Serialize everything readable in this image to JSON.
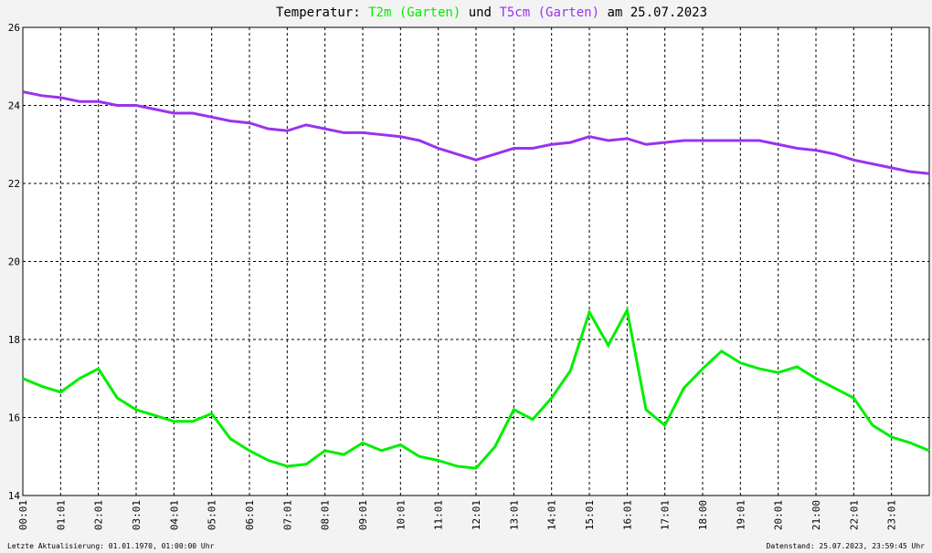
{
  "chart_data": {
    "type": "line",
    "title_parts": [
      "Temperatur:",
      "T2m (Garten)",
      "und",
      "T5cm (Garten)",
      "am 25.07.2023"
    ],
    "footer_left": "Letzte Aktualisierung: 01.01.1970, 01:00:00 Uhr",
    "footer_right": "Datenstand: 25.07.2023, 23:59:45 Uhr",
    "x": [
      0,
      0.5,
      1,
      1.5,
      2,
      2.5,
      3,
      3.5,
      4,
      4.5,
      5,
      5.5,
      6,
      6.5,
      7,
      7.5,
      8,
      8.5,
      9,
      9.5,
      10,
      10.5,
      11,
      11.5,
      12,
      12.5,
      13,
      13.5,
      14,
      14.5,
      15,
      15.5,
      16,
      16.5,
      17,
      17.5,
      18,
      18.5,
      19,
      19.5,
      20,
      20.5,
      21,
      21.5,
      22,
      22.5,
      23,
      23.5,
      24
    ],
    "series": [
      {
        "name": "T2m (Garten)",
        "color": "#00ee00",
        "values": [
          17.0,
          16.8,
          16.65,
          17.0,
          17.25,
          16.5,
          16.2,
          16.05,
          15.9,
          15.9,
          16.1,
          15.45,
          15.15,
          14.9,
          14.75,
          14.8,
          15.15,
          15.05,
          15.35,
          15.15,
          15.3,
          15.0,
          14.9,
          14.75,
          14.7,
          15.25,
          16.2,
          15.95,
          16.5,
          17.2,
          18.7,
          17.85,
          18.75,
          16.2,
          15.8,
          16.75,
          17.25,
          17.7,
          17.4,
          17.25,
          17.15,
          17.3,
          17.0,
          16.75,
          16.5,
          15.8,
          15.5,
          15.35,
          15.15
        ]
      },
      {
        "name": "T5cm (Garten)",
        "color": "#9933ee",
        "values": [
          24.35,
          24.25,
          24.2,
          24.1,
          24.1,
          24.0,
          24.0,
          23.9,
          23.8,
          23.8,
          23.7,
          23.6,
          23.55,
          23.4,
          23.35,
          23.5,
          23.4,
          23.3,
          23.3,
          23.25,
          23.2,
          23.1,
          22.9,
          22.75,
          22.6,
          22.75,
          22.9,
          22.9,
          23.0,
          23.05,
          23.2,
          23.1,
          23.15,
          23.0,
          23.05,
          23.1,
          23.1,
          23.1,
          23.1,
          23.1,
          23.0,
          22.9,
          22.85,
          22.75,
          22.6,
          22.5,
          22.4,
          22.3,
          22.25
        ]
      }
    ],
    "xlim": [
      0,
      24
    ],
    "xticks": [
      {
        "value": 0,
        "label": "00:01"
      },
      {
        "value": 1,
        "label": "01:01"
      },
      {
        "value": 2,
        "label": "02:01"
      },
      {
        "value": 3,
        "label": "03:01"
      },
      {
        "value": 4,
        "label": "04:01"
      },
      {
        "value": 5,
        "label": "05:01"
      },
      {
        "value": 6,
        "label": "06:01"
      },
      {
        "value": 7,
        "label": "07:01"
      },
      {
        "value": 8,
        "label": "08:01"
      },
      {
        "value": 9,
        "label": "09:01"
      },
      {
        "value": 10,
        "label": "10:01"
      },
      {
        "value": 11,
        "label": "11:01"
      },
      {
        "value": 12,
        "label": "12:01"
      },
      {
        "value": 13,
        "label": "13:01"
      },
      {
        "value": 14,
        "label": "14:01"
      },
      {
        "value": 15,
        "label": "15:01"
      },
      {
        "value": 16,
        "label": "16:01"
      },
      {
        "value": 17,
        "label": "17:01"
      },
      {
        "value": 18,
        "label": "18:00"
      },
      {
        "value": 19,
        "label": "19:01"
      },
      {
        "value": 20,
        "label": "20:01"
      },
      {
        "value": 21,
        "label": "21:00"
      },
      {
        "value": 22,
        "label": "22:01"
      },
      {
        "value": 23,
        "label": "23:01"
      }
    ],
    "ylim": [
      14,
      26
    ],
    "yticks": [
      14,
      16,
      18,
      20,
      22,
      24,
      26
    ],
    "grid": true
  }
}
